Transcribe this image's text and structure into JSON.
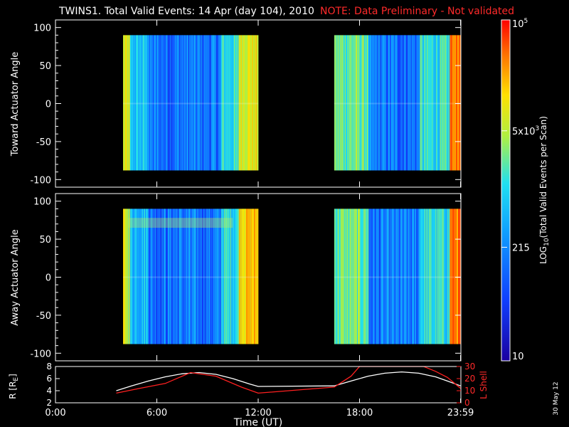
{
  "header": {
    "title": "TWINS1. Total Valid Events: 14 Apr (day 104), 2010",
    "note": "NOTE: Data Preliminary - Not validated",
    "colors": {
      "title": "#ffffff",
      "note": "#ff2020"
    }
  },
  "side_date": "30 May 12",
  "chart_data": [
    {
      "type": "heatmap",
      "id": "toward",
      "ylabel": "Toward Actuator Angle",
      "ylim": [
        -110,
        110
      ],
      "yticks": [
        100,
        50,
        0,
        -50,
        -100
      ],
      "xlim": [
        0,
        24
      ],
      "angle_range": [
        -88,
        90
      ],
      "data_intervals_hours": [
        [
          4.0,
          12.0
        ],
        [
          16.5,
          23.98
        ]
      ]
    },
    {
      "type": "heatmap",
      "id": "away",
      "ylabel": "Away Actuator Angle",
      "ylim": [
        -110,
        110
      ],
      "yticks": [
        100,
        50,
        0,
        -50,
        -100
      ],
      "xlim": [
        0,
        24
      ],
      "angle_range": [
        -88,
        90
      ],
      "data_intervals_hours": [
        [
          4.0,
          12.0
        ],
        [
          16.5,
          23.98
        ]
      ]
    },
    {
      "type": "line",
      "id": "orbit",
      "xlabel": "Time (UT)",
      "ylabel": "R [R",
      "ylabel_sub": "E",
      "ylabel_close": "]",
      "ylabel_right": "L Shell",
      "ylim": [
        2,
        8
      ],
      "yticks": [
        "8",
        "6",
        "4",
        "2"
      ],
      "ylim_right": [
        0,
        30
      ],
      "yticks_right": [
        "30",
        "20",
        "10",
        "0"
      ],
      "xticks": [
        0,
        6,
        12,
        18,
        23.98
      ],
      "xtick_labels": [
        "0:00",
        "6:00",
        "12:00",
        "18:00",
        "23:59"
      ],
      "series": [
        {
          "color": "#ffffff",
          "x": [
            3.6,
            4.5,
            5.5,
            6.5,
            7.5,
            8.5,
            9.5,
            10.5,
            11.5,
            12.0,
            16.5,
            17.5,
            18.5,
            19.5,
            20.5,
            21.5,
            22.5,
            23.2,
            23.98
          ],
          "y": [
            4.0,
            4.8,
            5.6,
            6.3,
            6.8,
            7.0,
            6.7,
            6.0,
            5.1,
            4.7,
            4.8,
            5.6,
            6.4,
            6.9,
            7.1,
            6.9,
            6.3,
            5.6,
            4.8
          ]
        },
        {
          "color": "#ff2020",
          "x": [
            3.6,
            5.0,
            6.5,
            8.0,
            9.5,
            11.0,
            12.0,
            16.5,
            17.5,
            18.0,
            21.8,
            22.5,
            23.2,
            23.98
          ],
          "y": [
            8,
            12,
            16,
            25,
            22,
            13,
            8,
            13,
            22,
            31,
            32,
            26,
            21,
            12
          ]
        }
      ]
    }
  ],
  "colorbar": {
    "label": "LOG",
    "label_sub": "10",
    "label_rest": "(Total Valid Events per Scan)",
    "ticks": [
      {
        "label": "10",
        "value": 10
      },
      {
        "label": "215",
        "value": 215
      },
      {
        "label": "5x10",
        "sup": "3",
        "value": 5000
      },
      {
        "label": "10",
        "sup": "5",
        "value": 100000
      }
    ],
    "range": [
      10,
      100000
    ]
  }
}
